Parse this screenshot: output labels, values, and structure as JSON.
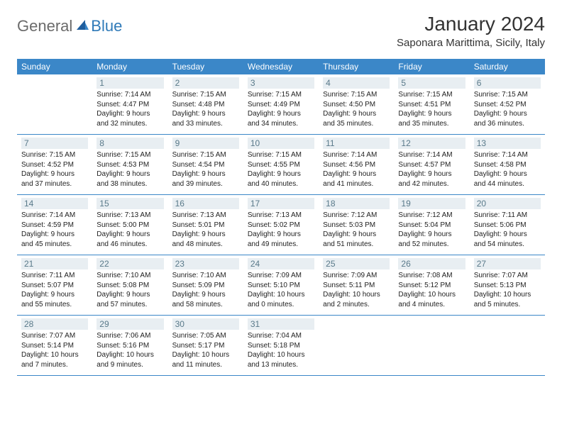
{
  "brand": {
    "part1": "General",
    "part2": "Blue"
  },
  "title": "January 2024",
  "location": "Saponara Marittima, Sicily, Italy",
  "colors": {
    "header_bg": "#3b87c8",
    "daynum_bg": "#e8eef2",
    "daynum_text": "#5a7a8a",
    "brand_gray": "#6b6b6b",
    "brand_blue": "#2f7ab8"
  },
  "dayNames": [
    "Sunday",
    "Monday",
    "Tuesday",
    "Wednesday",
    "Thursday",
    "Friday",
    "Saturday"
  ],
  "weeks": [
    [
      null,
      {
        "n": "1",
        "sr": "7:14 AM",
        "ss": "4:47 PM",
        "dl": "9 hours and 32 minutes."
      },
      {
        "n": "2",
        "sr": "7:15 AM",
        "ss": "4:48 PM",
        "dl": "9 hours and 33 minutes."
      },
      {
        "n": "3",
        "sr": "7:15 AM",
        "ss": "4:49 PM",
        "dl": "9 hours and 34 minutes."
      },
      {
        "n": "4",
        "sr": "7:15 AM",
        "ss": "4:50 PM",
        "dl": "9 hours and 35 minutes."
      },
      {
        "n": "5",
        "sr": "7:15 AM",
        "ss": "4:51 PM",
        "dl": "9 hours and 35 minutes."
      },
      {
        "n": "6",
        "sr": "7:15 AM",
        "ss": "4:52 PM",
        "dl": "9 hours and 36 minutes."
      }
    ],
    [
      {
        "n": "7",
        "sr": "7:15 AM",
        "ss": "4:52 PM",
        "dl": "9 hours and 37 minutes."
      },
      {
        "n": "8",
        "sr": "7:15 AM",
        "ss": "4:53 PM",
        "dl": "9 hours and 38 minutes."
      },
      {
        "n": "9",
        "sr": "7:15 AM",
        "ss": "4:54 PM",
        "dl": "9 hours and 39 minutes."
      },
      {
        "n": "10",
        "sr": "7:15 AM",
        "ss": "4:55 PM",
        "dl": "9 hours and 40 minutes."
      },
      {
        "n": "11",
        "sr": "7:14 AM",
        "ss": "4:56 PM",
        "dl": "9 hours and 41 minutes."
      },
      {
        "n": "12",
        "sr": "7:14 AM",
        "ss": "4:57 PM",
        "dl": "9 hours and 42 minutes."
      },
      {
        "n": "13",
        "sr": "7:14 AM",
        "ss": "4:58 PM",
        "dl": "9 hours and 44 minutes."
      }
    ],
    [
      {
        "n": "14",
        "sr": "7:14 AM",
        "ss": "4:59 PM",
        "dl": "9 hours and 45 minutes."
      },
      {
        "n": "15",
        "sr": "7:13 AM",
        "ss": "5:00 PM",
        "dl": "9 hours and 46 minutes."
      },
      {
        "n": "16",
        "sr": "7:13 AM",
        "ss": "5:01 PM",
        "dl": "9 hours and 48 minutes."
      },
      {
        "n": "17",
        "sr": "7:13 AM",
        "ss": "5:02 PM",
        "dl": "9 hours and 49 minutes."
      },
      {
        "n": "18",
        "sr": "7:12 AM",
        "ss": "5:03 PM",
        "dl": "9 hours and 51 minutes."
      },
      {
        "n": "19",
        "sr": "7:12 AM",
        "ss": "5:04 PM",
        "dl": "9 hours and 52 minutes."
      },
      {
        "n": "20",
        "sr": "7:11 AM",
        "ss": "5:06 PM",
        "dl": "9 hours and 54 minutes."
      }
    ],
    [
      {
        "n": "21",
        "sr": "7:11 AM",
        "ss": "5:07 PM",
        "dl": "9 hours and 55 minutes."
      },
      {
        "n": "22",
        "sr": "7:10 AM",
        "ss": "5:08 PM",
        "dl": "9 hours and 57 minutes."
      },
      {
        "n": "23",
        "sr": "7:10 AM",
        "ss": "5:09 PM",
        "dl": "9 hours and 58 minutes."
      },
      {
        "n": "24",
        "sr": "7:09 AM",
        "ss": "5:10 PM",
        "dl": "10 hours and 0 minutes."
      },
      {
        "n": "25",
        "sr": "7:09 AM",
        "ss": "5:11 PM",
        "dl": "10 hours and 2 minutes."
      },
      {
        "n": "26",
        "sr": "7:08 AM",
        "ss": "5:12 PM",
        "dl": "10 hours and 4 minutes."
      },
      {
        "n": "27",
        "sr": "7:07 AM",
        "ss": "5:13 PM",
        "dl": "10 hours and 5 minutes."
      }
    ],
    [
      {
        "n": "28",
        "sr": "7:07 AM",
        "ss": "5:14 PM",
        "dl": "10 hours and 7 minutes."
      },
      {
        "n": "29",
        "sr": "7:06 AM",
        "ss": "5:16 PM",
        "dl": "10 hours and 9 minutes."
      },
      {
        "n": "30",
        "sr": "7:05 AM",
        "ss": "5:17 PM",
        "dl": "10 hours and 11 minutes."
      },
      {
        "n": "31",
        "sr": "7:04 AM",
        "ss": "5:18 PM",
        "dl": "10 hours and 13 minutes."
      },
      null,
      null,
      null
    ]
  ]
}
